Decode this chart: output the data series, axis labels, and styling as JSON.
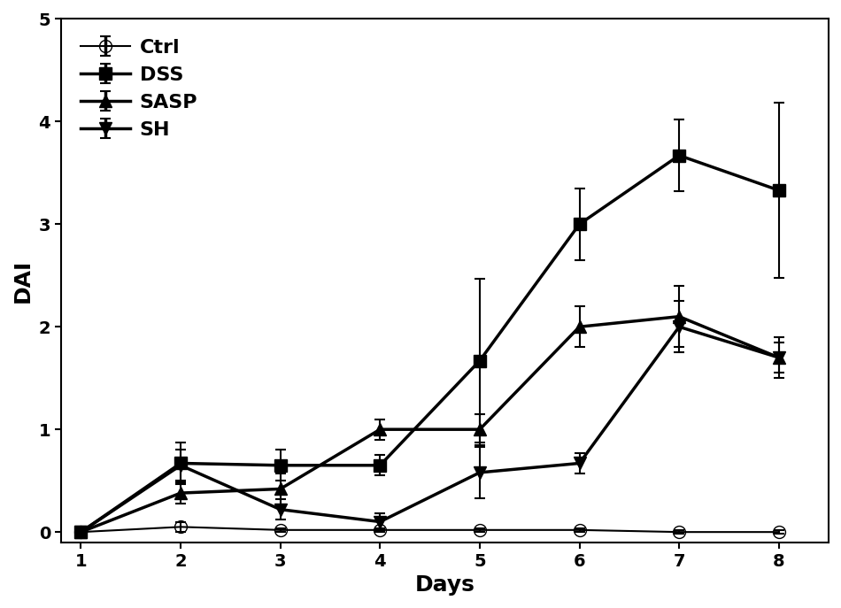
{
  "days": [
    1,
    2,
    3,
    4,
    5,
    6,
    7,
    8
  ],
  "ctrl": {
    "y": [
      0.0,
      0.05,
      0.02,
      0.02,
      0.02,
      0.02,
      0.0,
      0.0
    ],
    "yerr": [
      0.0,
      0.05,
      0.02,
      0.02,
      0.02,
      0.02,
      0.02,
      0.02
    ],
    "label": "Ctrl",
    "marker": "o",
    "fillstyle": "none",
    "linewidth": 1.5
  },
  "dss": {
    "y": [
      0.0,
      0.67,
      0.65,
      0.65,
      1.67,
      3.0,
      3.67,
      3.33
    ],
    "yerr": [
      0.0,
      0.2,
      0.15,
      0.1,
      0.8,
      0.35,
      0.35,
      0.85
    ],
    "label": "DSS",
    "marker": "s",
    "fillstyle": "full",
    "linewidth": 2.5
  },
  "sasp": {
    "y": [
      0.0,
      0.38,
      0.42,
      1.0,
      1.0,
      2.0,
      2.1,
      1.7
    ],
    "yerr": [
      0.0,
      0.1,
      0.15,
      0.1,
      0.15,
      0.2,
      0.3,
      0.2
    ],
    "label": "SASP",
    "marker": "^",
    "fillstyle": "full",
    "linewidth": 2.5
  },
  "sh": {
    "y": [
      0.0,
      0.65,
      0.22,
      0.1,
      0.58,
      0.67,
      2.0,
      1.7
    ],
    "yerr": [
      0.0,
      0.15,
      0.1,
      0.08,
      0.25,
      0.1,
      0.25,
      0.15
    ],
    "label": "SH",
    "marker": "v",
    "fillstyle": "full",
    "linewidth": 2.5
  },
  "xlabel": "Days",
  "ylabel": "DAI",
  "ylim": [
    -0.1,
    5.0
  ],
  "xlim": [
    0.8,
    8.5
  ],
  "yticks": [
    0,
    1,
    2,
    3,
    4,
    5
  ],
  "xticks": [
    1,
    2,
    3,
    4,
    5,
    6,
    7,
    8
  ],
  "color": "#000000",
  "background_color": "#ffffff",
  "legend_fontsize": 16,
  "axis_label_fontsize": 18,
  "tick_fontsize": 14
}
